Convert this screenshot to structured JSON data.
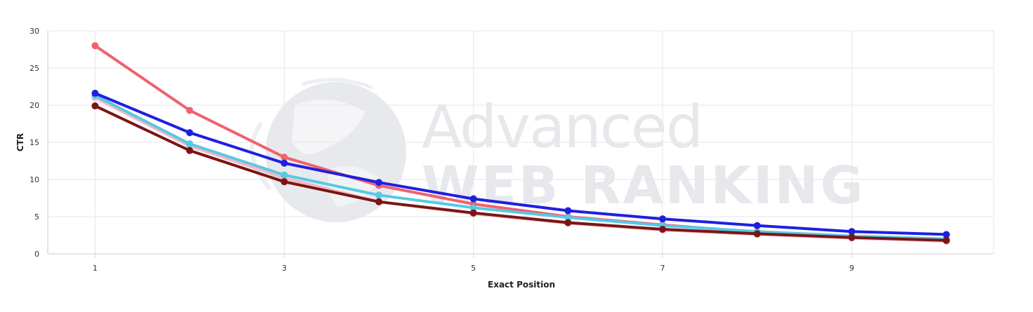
{
  "watermark": {
    "line1": "Advanced",
    "line2": "WEB RANKING"
  },
  "colors": {
    "grid": "#e6e6e6",
    "axis": "#cccccc",
    "text": "#333333",
    "watermark": "#e7e8ec"
  },
  "chart_data": {
    "type": "line",
    "title": "",
    "xlabel": "Exact Position",
    "ylabel": "CTR",
    "xlim": [
      0.5,
      10.5
    ],
    "ylim": [
      0,
      30
    ],
    "x_ticks": [
      1,
      3,
      5,
      7,
      9
    ],
    "y_ticks": [
      0,
      5,
      10,
      15,
      20,
      25,
      30
    ],
    "grid": true,
    "legend": "none",
    "series": [
      {
        "color": "#f0616f",
        "x": [
          1,
          2,
          3,
          4,
          5,
          6,
          7,
          8,
          9,
          10
        ],
        "y": [
          28.0,
          19.3,
          13.0,
          9.2,
          6.7,
          5.0,
          3.9,
          2.9,
          2.3,
          1.9
        ]
      },
      {
        "color": "#f5b7c5",
        "x": [
          1,
          2,
          3,
          4,
          5,
          6,
          7,
          8,
          9,
          10
        ],
        "y": [
          21.0,
          14.5,
          10.2,
          7.0,
          5.4,
          4.1,
          3.2,
          2.6,
          2.1,
          1.7
        ]
      },
      {
        "color": "#57c9e4",
        "x": [
          1,
          2,
          3,
          4,
          5,
          6,
          7,
          8,
          9,
          10
        ],
        "y": [
          21.3,
          14.8,
          10.6,
          7.9,
          6.2,
          4.9,
          3.8,
          3.0,
          2.4,
          2.0
        ]
      },
      {
        "color": "#1f1fe0",
        "x": [
          1,
          2,
          3,
          4,
          5,
          6,
          7,
          8,
          9,
          10
        ],
        "y": [
          21.6,
          16.3,
          12.2,
          9.6,
          7.4,
          5.8,
          4.7,
          3.8,
          3.0,
          2.6
        ]
      },
      {
        "color": "#7a1515",
        "x": [
          1,
          2,
          3,
          4,
          5,
          6,
          7,
          8,
          9,
          10
        ],
        "y": [
          19.9,
          13.9,
          9.7,
          7.0,
          5.5,
          4.2,
          3.3,
          2.7,
          2.2,
          1.8
        ]
      }
    ]
  }
}
